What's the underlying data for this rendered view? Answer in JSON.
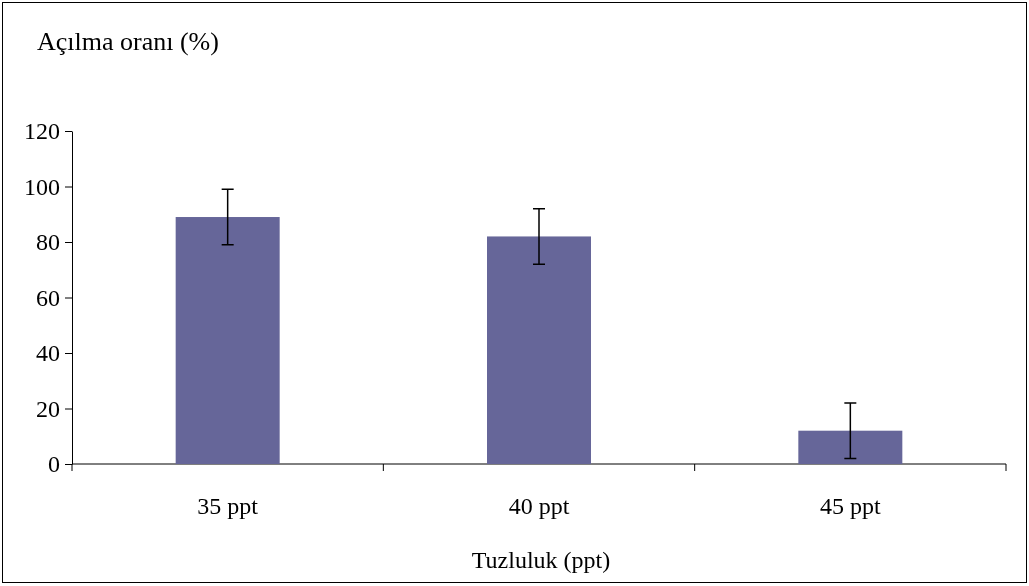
{
  "chart_data": {
    "type": "bar",
    "ylabel": "Açılma oranı (%)",
    "xlabel": "Tuzluluk (ppt)",
    "categories": [
      "35 ppt",
      "40 ppt",
      "45 ppt"
    ],
    "values": [
      89,
      82,
      12
    ],
    "errors": [
      10,
      10,
      10
    ],
    "color": "#666699",
    "ylim": [
      0,
      120
    ],
    "yticks": [
      0,
      20,
      40,
      60,
      80,
      100,
      120
    ],
    "grid": false
  }
}
